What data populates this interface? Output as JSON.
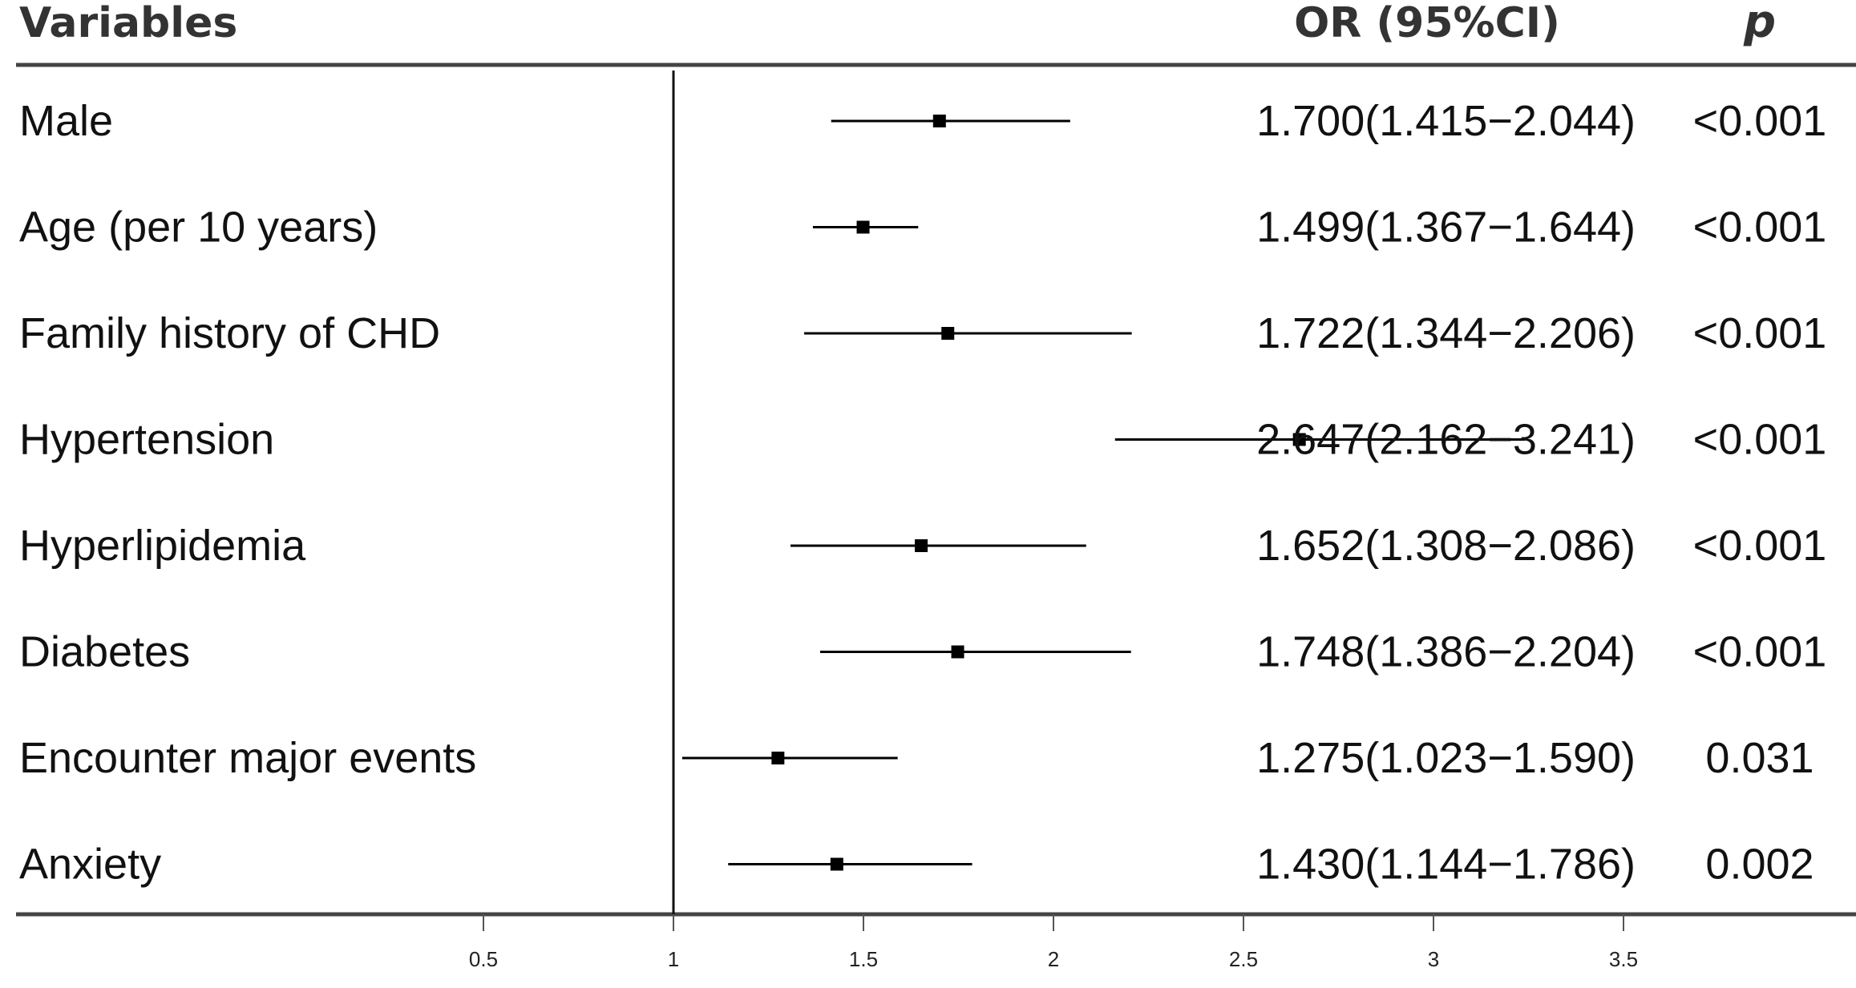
{
  "headers": {
    "variables": "Variables",
    "or_ci": "OR (95%CI)",
    "p": "p"
  },
  "chart_data": {
    "type": "forest",
    "reference_line": 1,
    "xlim": [
      0.5,
      3.5
    ],
    "x_ticks": [
      "0.5",
      "1",
      "1.5",
      "2",
      "2.5",
      "3",
      "3.5"
    ],
    "rows": [
      {
        "label": "Male",
        "or": 1.7,
        "lower": 1.415,
        "upper": 2.044,
        "or_text": "1.700(1.415−2.044)",
        "p_text": "<0.001"
      },
      {
        "label": "Age (per 10 years)",
        "or": 1.499,
        "lower": 1.367,
        "upper": 1.644,
        "or_text": "1.499(1.367−1.644)",
        "p_text": "<0.001"
      },
      {
        "label": "Family history of CHD",
        "or": 1.722,
        "lower": 1.344,
        "upper": 2.206,
        "or_text": "1.722(1.344−2.206)",
        "p_text": "<0.001"
      },
      {
        "label": "Hypertension",
        "or": 2.647,
        "lower": 2.162,
        "upper": 3.241,
        "or_text": "2.647(2.162−3.241)",
        "p_text": "<0.001"
      },
      {
        "label": "Hyperlipidemia",
        "or": 1.652,
        "lower": 1.308,
        "upper": 2.086,
        "or_text": "1.652(1.308−2.086)",
        "p_text": "<0.001"
      },
      {
        "label": "Diabetes",
        "or": 1.748,
        "lower": 1.386,
        "upper": 2.204,
        "or_text": "1.748(1.386−2.204)",
        "p_text": "<0.001"
      },
      {
        "label": "Encounter major events",
        "or": 1.275,
        "lower": 1.023,
        "upper": 1.59,
        "or_text": "1.275(1.023−1.590)",
        "p_text": "0.031"
      },
      {
        "label": "Anxiety",
        "or": 1.43,
        "lower": 1.144,
        "upper": 1.786,
        "or_text": "1.430(1.144−1.786)",
        "p_text": "0.002"
      }
    ]
  }
}
